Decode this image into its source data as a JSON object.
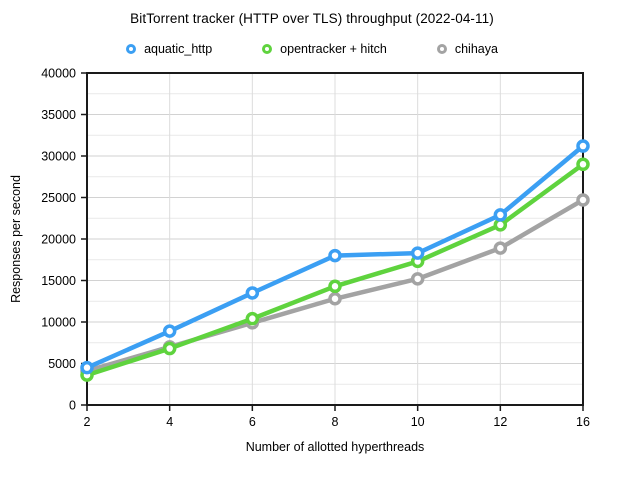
{
  "chart_data": {
    "type": "line",
    "title": "BitTorrent tracker (HTTP over TLS) throughput (2022-04-11)",
    "xlabel": "Number of allotted hyperthreads",
    "ylabel": "Responses per second",
    "categories": [
      "2",
      "4",
      "6",
      "8",
      "10",
      "12",
      "16"
    ],
    "series": [
      {
        "name": "aquatic_http",
        "color": "#3B9FF3",
        "values": [
          4500,
          8900,
          13500,
          18000,
          18300,
          22900,
          31200
        ]
      },
      {
        "name": "opentracker + hitch",
        "color": "#5FD33E",
        "values": [
          3600,
          6800,
          10400,
          14300,
          17300,
          21700,
          29000
        ]
      },
      {
        "name": "chihaya",
        "color": "#A3A3A3",
        "values": [
          4100,
          7000,
          9900,
          12800,
          15200,
          18900,
          24700
        ]
      }
    ],
    "ylim": [
      0,
      40000
    ],
    "y_major_step": 5000,
    "y_minor_step": 2500,
    "y_tick_labels": [
      "0",
      "5000",
      "10000",
      "15000",
      "20000",
      "25000",
      "30000",
      "35000",
      "40000"
    ],
    "legend_position": "top",
    "grid": "horizontal major + minor lines, vertical line per category",
    "axis_color": "#1a1a1a",
    "major_grid_color": "#d2d2d2",
    "minor_grid_color": "#e9e9e9",
    "vertical_grid_color": "#dcdcdc"
  }
}
